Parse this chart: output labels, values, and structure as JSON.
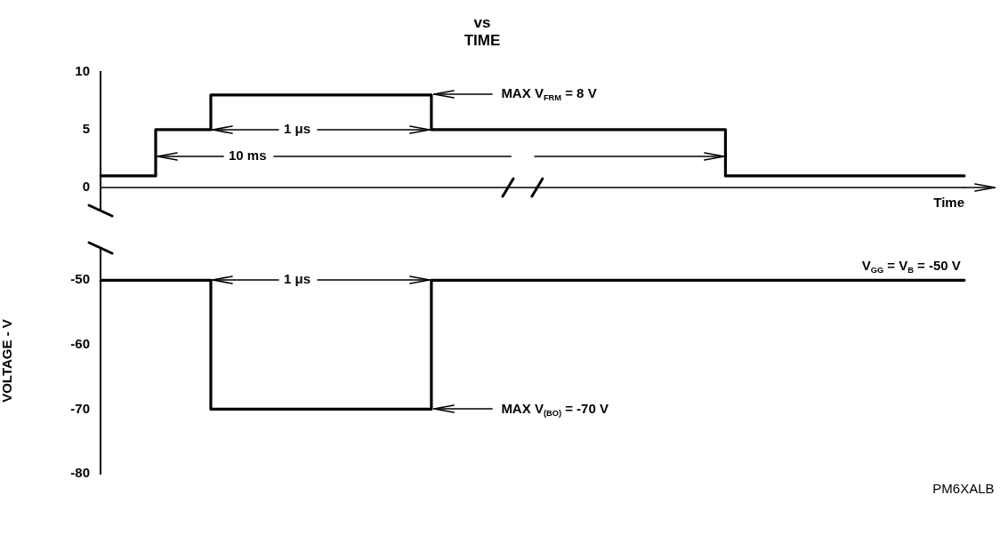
{
  "chart_data": [
    {
      "type": "step",
      "title": "vs\nTIME",
      "xlabel": "Time",
      "categories": [
        null,
        null,
        null,
        null,
        null,
        null,
        null,
        null,
        null,
        null,
        null,
        null,
        null,
        null,
        null,
        null,
        null,
        null,
        null,
        null,
        null,
        null,
        null,
        null,
        null,
        null,
        null,
        null,
        null,
        null,
        null,
        null,
        null,
        null,
        null,
        null,
        null,
        null,
        null,
        null,
        null,
        null,
        null,
        null,
        null,
        null,
        null,
        null
      ],
      "series": [
        {
          "color": "#000000",
          "values": [
            1,
            1,
            1,
            1,
            5,
            5,
            5,
            8,
            8,
            8,
            8,
            8,
            8,
            8,
            8,
            8,
            8,
            8,
            8,
            5,
            5,
            5,
            5,
            5,
            5,
            5,
            5,
            5,
            5,
            5,
            5,
            5,
            5,
            5,
            5,
            1,
            1,
            1,
            1,
            1,
            1,
            1,
            1,
            1,
            1,
            1,
            1,
            1
          ]
        }
      ],
      "ylim": [
        -2,
        10
      ],
      "yticks": [
        0,
        5,
        10
      ],
      "grid": false,
      "legend": false,
      "tick_labels": "y",
      "ref_lines": [
        {
          "axis": "y",
          "value": 0,
          "color": "#000000"
        }
      ],
      "annotations": [
        "1 μs",
        "10 ms",
        "MAX V$_{FRM}$ = 8 V"
      ]
    },
    {
      "type": "step",
      "ylabel": "VOLTAGE - V",
      "categories": [
        null,
        null,
        null,
        null,
        null,
        null,
        null,
        null,
        null,
        null,
        null,
        null,
        null,
        null,
        null,
        null,
        null,
        null,
        null,
        null,
        null,
        null,
        null,
        null,
        null,
        null,
        null,
        null,
        null,
        null,
        null,
        null,
        null,
        null,
        null,
        null,
        null,
        null,
        null,
        null,
        null,
        null,
        null,
        null,
        null,
        null,
        null,
        null
      ],
      "series": [
        {
          "color": "#000000",
          "values": [
            -50,
            -50,
            -50,
            -50,
            -50,
            -50,
            -50,
            -70,
            -70,
            -70,
            -70,
            -70,
            -70,
            -70,
            -70,
            -70,
            -70,
            -70,
            -70,
            -50,
            -50,
            -50,
            -50,
            -50,
            -50,
            -50,
            -50,
            -50,
            -50,
            -50,
            -50,
            -50,
            -50,
            -50,
            -50,
            -50,
            -50,
            -50,
            -50,
            -50,
            -50,
            -50,
            -50,
            -50,
            -50,
            -50,
            -50,
            -50
          ]
        }
      ],
      "ylim": [
        -80,
        -45
      ],
      "yticks": [
        -50,
        -60,
        -70,
        -80
      ],
      "grid": false,
      "legend": false,
      "tick_labels": "y",
      "annotations": [
        "1 μs",
        "V$_{GG}$ = V$_{B}$ = -50 V",
        "MAX V$_{(BO)}$ = -70 V",
        "PM6XALB"
      ]
    }
  ]
}
